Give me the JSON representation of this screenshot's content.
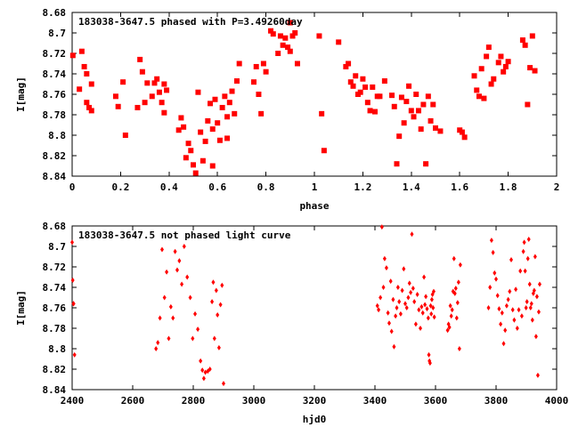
{
  "chart_data": [
    {
      "type": "scatter",
      "title": "183038-3647.5 phased with P=3.49260day",
      "xlabel": "phase",
      "ylabel": "I[mag]",
      "xlim": [
        0,
        2
      ],
      "ylim": [
        8.68,
        8.84
      ],
      "y_inverted": true,
      "x_ticks": [
        "0",
        "0.2",
        "0.4",
        "0.6",
        "0.8",
        "1",
        "1.2",
        "1.4",
        "1.6",
        "1.8",
        "2"
      ],
      "y_ticks": [
        "8.68",
        "8.7",
        "8.72",
        "8.74",
        "8.76",
        "8.78",
        "8.8",
        "8.82",
        "8.84"
      ],
      "marker_color": "#ff0000",
      "points": [
        [
          0.003,
          8.722
        ],
        [
          0.03,
          8.755
        ],
        [
          0.04,
          8.718
        ],
        [
          0.05,
          8.733
        ],
        [
          0.06,
          8.74
        ],
        [
          0.06,
          8.768
        ],
        [
          0.07,
          8.773
        ],
        [
          0.08,
          8.75
        ],
        [
          0.08,
          8.776
        ],
        [
          0.18,
          8.762
        ],
        [
          0.19,
          8.772
        ],
        [
          0.21,
          8.748
        ],
        [
          0.22,
          8.8
        ],
        [
          0.27,
          8.773
        ],
        [
          0.28,
          8.726
        ],
        [
          0.29,
          8.738
        ],
        [
          0.3,
          8.768
        ],
        [
          0.31,
          8.749
        ],
        [
          0.33,
          8.762
        ],
        [
          0.34,
          8.749
        ],
        [
          0.35,
          8.745
        ],
        [
          0.36,
          8.758
        ],
        [
          0.37,
          8.768
        ],
        [
          0.38,
          8.75
        ],
        [
          0.38,
          8.778
        ],
        [
          0.39,
          8.756
        ],
        [
          0.44,
          8.795
        ],
        [
          0.45,
          8.783
        ],
        [
          0.46,
          8.792
        ],
        [
          0.47,
          8.822
        ],
        [
          0.48,
          8.808
        ],
        [
          0.49,
          8.815
        ],
        [
          0.5,
          8.829
        ],
        [
          0.51,
          8.837
        ],
        [
          0.52,
          8.758
        ],
        [
          0.53,
          8.797
        ],
        [
          0.54,
          8.825
        ],
        [
          0.55,
          8.806
        ],
        [
          0.56,
          8.786
        ],
        [
          0.57,
          8.769
        ],
        [
          0.58,
          8.794
        ],
        [
          0.58,
          8.83
        ],
        [
          0.59,
          8.765
        ],
        [
          0.6,
          8.788
        ],
        [
          0.61,
          8.805
        ],
        [
          0.62,
          8.773
        ],
        [
          0.63,
          8.762
        ],
        [
          0.64,
          8.782
        ],
        [
          0.64,
          8.803
        ],
        [
          0.65,
          8.768
        ],
        [
          0.66,
          8.757
        ],
        [
          0.67,
          8.779
        ],
        [
          0.68,
          8.747
        ],
        [
          0.69,
          8.73
        ],
        [
          0.75,
          8.748
        ],
        [
          0.76,
          8.733
        ],
        [
          0.77,
          8.76
        ],
        [
          0.78,
          8.779
        ],
        [
          0.79,
          8.73
        ],
        [
          0.8,
          8.738
        ],
        [
          0.82,
          8.698
        ],
        [
          0.83,
          8.701
        ],
        [
          0.85,
          8.72
        ],
        [
          0.86,
          8.703
        ],
        [
          0.87,
          8.712
        ],
        [
          0.88,
          8.705
        ],
        [
          0.89,
          8.714
        ],
        [
          0.9,
          8.69
        ],
        [
          0.9,
          8.718
        ],
        [
          0.91,
          8.703
        ],
        [
          0.92,
          8.7
        ],
        [
          0.93,
          8.73
        ],
        [
          1.02,
          8.703
        ],
        [
          1.03,
          8.779
        ],
        [
          1.04,
          8.815
        ],
        [
          1.1,
          8.709
        ],
        [
          1.13,
          8.733
        ],
        [
          1.14,
          8.73
        ],
        [
          1.15,
          8.748
        ],
        [
          1.16,
          8.752
        ],
        [
          1.17,
          8.742
        ],
        [
          1.18,
          8.76
        ],
        [
          1.19,
          8.758
        ],
        [
          1.2,
          8.745
        ],
        [
          1.21,
          8.753
        ],
        [
          1.22,
          8.768
        ],
        [
          1.23,
          8.776
        ],
        [
          1.24,
          8.753
        ],
        [
          1.25,
          8.777
        ],
        [
          1.26,
          8.762
        ],
        [
          1.27,
          8.762
        ],
        [
          1.29,
          8.747
        ],
        [
          1.32,
          8.761
        ],
        [
          1.33,
          8.772
        ],
        [
          1.34,
          8.828
        ],
        [
          1.35,
          8.801
        ],
        [
          1.36,
          8.763
        ],
        [
          1.37,
          8.788
        ],
        [
          1.38,
          8.767
        ],
        [
          1.39,
          8.752
        ],
        [
          1.4,
          8.776
        ],
        [
          1.41,
          8.782
        ],
        [
          1.42,
          8.76
        ],
        [
          1.43,
          8.776
        ],
        [
          1.44,
          8.794
        ],
        [
          1.45,
          8.77
        ],
        [
          1.46,
          8.828
        ],
        [
          1.47,
          8.762
        ],
        [
          1.48,
          8.786
        ],
        [
          1.49,
          8.77
        ],
        [
          1.5,
          8.793
        ],
        [
          1.52,
          8.796
        ],
        [
          1.6,
          8.795
        ],
        [
          1.61,
          8.797
        ],
        [
          1.62,
          8.802
        ],
        [
          1.66,
          8.742
        ],
        [
          1.67,
          8.756
        ],
        [
          1.68,
          8.762
        ],
        [
          1.69,
          8.735
        ],
        [
          1.7,
          8.764
        ],
        [
          1.71,
          8.723
        ],
        [
          1.72,
          8.714
        ],
        [
          1.73,
          8.75
        ],
        [
          1.74,
          8.745
        ],
        [
          1.76,
          8.729
        ],
        [
          1.77,
          8.723
        ],
        [
          1.78,
          8.738
        ],
        [
          1.79,
          8.733
        ],
        [
          1.8,
          8.728
        ],
        [
          1.86,
          8.707
        ],
        [
          1.87,
          8.712
        ],
        [
          1.88,
          8.77
        ],
        [
          1.89,
          8.734
        ],
        [
          1.9,
          8.703
        ],
        [
          1.91,
          8.737
        ]
      ]
    },
    {
      "type": "scatter",
      "title": "183038-3647.5 not phased light curve",
      "xlabel": "hjd0",
      "ylabel": "I[mag]",
      "xlim": [
        2400,
        4000
      ],
      "ylim": [
        8.68,
        8.84
      ],
      "y_inverted": true,
      "x_ticks": [
        "2400",
        "2600",
        "2800",
        "3000",
        "3200",
        "3400",
        "3600",
        "3800",
        "4000"
      ],
      "y_ticks": [
        "8.68",
        "8.7",
        "8.72",
        "8.74",
        "8.76",
        "8.78",
        "8.8",
        "8.82",
        "8.84"
      ],
      "marker_color": "#ff0000",
      "points": [
        [
          2400,
          8.696
        ],
        [
          2402,
          8.733
        ],
        [
          2404,
          8.756
        ],
        [
          2405,
          8.756
        ],
        [
          2408,
          8.806
        ],
        [
          2677,
          8.8
        ],
        [
          2683,
          8.794
        ],
        [
          2690,
          8.77
        ],
        [
          2697,
          8.703
        ],
        [
          2705,
          8.75
        ],
        [
          2712,
          8.725
        ],
        [
          2719,
          8.79
        ],
        [
          2726,
          8.759
        ],
        [
          2733,
          8.77
        ],
        [
          2740,
          8.705
        ],
        [
          2747,
          8.723
        ],
        [
          2754,
          8.714
        ],
        [
          2762,
          8.737
        ],
        [
          2770,
          8.7
        ],
        [
          2780,
          8.73
        ],
        [
          2790,
          8.75
        ],
        [
          2798,
          8.79
        ],
        [
          2806,
          8.766
        ],
        [
          2815,
          8.781
        ],
        [
          2824,
          8.812
        ],
        [
          2830,
          8.821
        ],
        [
          2835,
          8.829
        ],
        [
          2840,
          8.823
        ],
        [
          2848,
          8.822
        ],
        [
          2855,
          8.82
        ],
        [
          2862,
          8.754
        ],
        [
          2866,
          8.735
        ],
        [
          2870,
          8.79
        ],
        [
          2876,
          8.743
        ],
        [
          2880,
          8.767
        ],
        [
          2885,
          8.799
        ],
        [
          2890,
          8.757
        ],
        [
          2895,
          8.738
        ],
        [
          2900,
          8.834
        ],
        [
          3408,
          8.758
        ],
        [
          3412,
          8.762
        ],
        [
          3418,
          8.75
        ],
        [
          3423,
          8.681
        ],
        [
          3428,
          8.74
        ],
        [
          3432,
          8.712
        ],
        [
          3438,
          8.721
        ],
        [
          3443,
          8.765
        ],
        [
          3447,
          8.775
        ],
        [
          3452,
          8.734
        ],
        [
          3455,
          8.783
        ],
        [
          3460,
          8.752
        ],
        [
          3463,
          8.798
        ],
        [
          3468,
          8.768
        ],
        [
          3472,
          8.76
        ],
        [
          3476,
          8.74
        ],
        [
          3480,
          8.754
        ],
        [
          3485,
          8.766
        ],
        [
          3490,
          8.743
        ],
        [
          3495,
          8.722
        ],
        [
          3500,
          8.756
        ],
        [
          3505,
          8.76
        ],
        [
          3510,
          8.75
        ],
        [
          3514,
          8.736
        ],
        [
          3518,
          8.745
        ],
        [
          3522,
          8.688
        ],
        [
          3526,
          8.741
        ],
        [
          3530,
          8.754
        ],
        [
          3535,
          8.776
        ],
        [
          3540,
          8.747
        ],
        [
          3545,
          8.762
        ],
        [
          3550,
          8.78
        ],
        [
          3554,
          8.759
        ],
        [
          3558,
          8.765
        ],
        [
          3562,
          8.73
        ],
        [
          3565,
          8.757
        ],
        [
          3568,
          8.749
        ],
        [
          3572,
          8.761
        ],
        [
          3576,
          8.77
        ],
        [
          3578,
          8.806
        ],
        [
          3580,
          8.812
        ],
        [
          3582,
          8.814
        ],
        [
          3584,
          8.758
        ],
        [
          3586,
          8.766
        ],
        [
          3588,
          8.752
        ],
        [
          3590,
          8.747
        ],
        [
          3592,
          8.76
        ],
        [
          3594,
          8.744
        ],
        [
          3596,
          8.769
        ],
        [
          3640,
          8.782
        ],
        [
          3643,
          8.776
        ],
        [
          3646,
          8.779
        ],
        [
          3649,
          8.758
        ],
        [
          3652,
          8.768
        ],
        [
          3655,
          8.762
        ],
        [
          3658,
          8.744
        ],
        [
          3661,
          8.712
        ],
        [
          3664,
          8.746
        ],
        [
          3667,
          8.741
        ],
        [
          3670,
          8.77
        ],
        [
          3673,
          8.755
        ],
        [
          3676,
          8.735
        ],
        [
          3679,
          8.8
        ],
        [
          3682,
          8.718
        ],
        [
          3775,
          8.76
        ],
        [
          3780,
          8.74
        ],
        [
          3785,
          8.694
        ],
        [
          3790,
          8.706
        ],
        [
          3795,
          8.726
        ],
        [
          3800,
          8.732
        ],
        [
          3805,
          8.748
        ],
        [
          3810,
          8.761
        ],
        [
          3815,
          8.776
        ],
        [
          3820,
          8.765
        ],
        [
          3825,
          8.795
        ],
        [
          3830,
          8.782
        ],
        [
          3835,
          8.758
        ],
        [
          3840,
          8.752
        ],
        [
          3845,
          8.744
        ],
        [
          3850,
          8.713
        ],
        [
          3855,
          8.762
        ],
        [
          3860,
          8.772
        ],
        [
          3865,
          8.742
        ],
        [
          3870,
          8.78
        ],
        [
          3875,
          8.762
        ],
        [
          3880,
          8.724
        ],
        [
          3885,
          8.768
        ],
        [
          3890,
          8.705
        ],
        [
          3893,
          8.696
        ],
        [
          3896,
          8.724
        ],
        [
          3899,
          8.76
        ],
        [
          3902,
          8.754
        ],
        [
          3905,
          8.712
        ],
        [
          3908,
          8.693
        ],
        [
          3911,
          8.737
        ],
        [
          3914,
          8.76
        ],
        [
          3917,
          8.756
        ],
        [
          3920,
          8.772
        ],
        [
          3923,
          8.746
        ],
        [
          3926,
          8.743
        ],
        [
          3929,
          8.71
        ],
        [
          3932,
          8.788
        ],
        [
          3935,
          8.749
        ],
        [
          3938,
          8.826
        ],
        [
          3941,
          8.764
        ],
        [
          3944,
          8.737
        ]
      ]
    }
  ]
}
